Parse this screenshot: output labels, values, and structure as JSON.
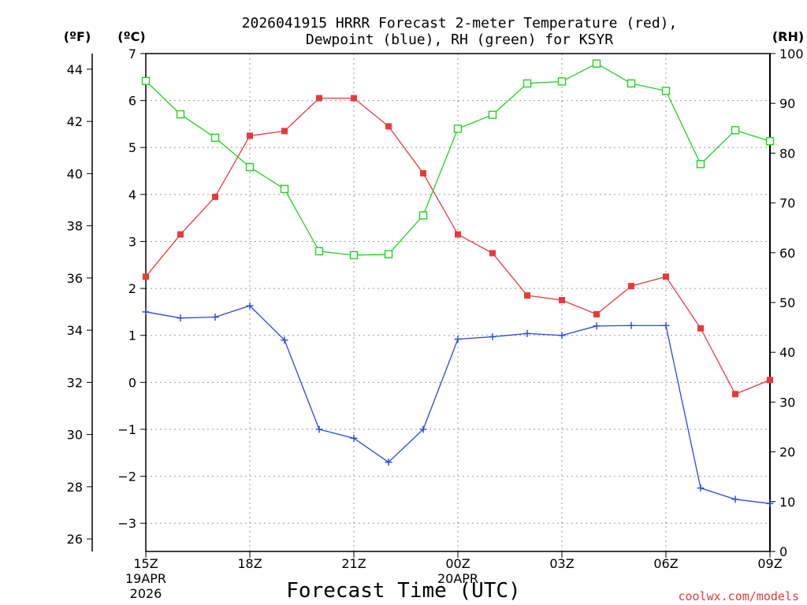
{
  "title_line1": "2026041915 HRRR Forecast 2-meter Temperature (red),",
  "title_line2": "Dewpoint (blue), RH (green) for KSYR",
  "credit": "coolwx.com/models",
  "chart_data": {
    "type": "line",
    "xlabel": "Forecast Time (UTC)",
    "x": [
      "15Z",
      "16Z",
      "17Z",
      "18Z",
      "19Z",
      "20Z",
      "21Z",
      "22Z",
      "23Z",
      "00Z",
      "01Z",
      "02Z",
      "03Z",
      "04Z",
      "05Z",
      "06Z",
      "07Z",
      "08Z",
      "09Z"
    ],
    "x_ticks": [
      {
        "index": 0,
        "label": "15Z",
        "sub": [
          "19APR",
          "2026"
        ]
      },
      {
        "index": 3,
        "label": "18Z",
        "sub": []
      },
      {
        "index": 6,
        "label": "21Z",
        "sub": []
      },
      {
        "index": 9,
        "label": "00Z",
        "sub": [
          "20APR"
        ]
      },
      {
        "index": 12,
        "label": "03Z",
        "sub": []
      },
      {
        "index": 15,
        "label": "06Z",
        "sub": []
      },
      {
        "index": 18,
        "label": "09Z",
        "sub": []
      }
    ],
    "axes": {
      "celsius": {
        "unit_label": "(ºC)",
        "range": [
          -3.6,
          7
        ],
        "ticks": [
          -3,
          -2,
          -1,
          0,
          1,
          2,
          3,
          4,
          5,
          6,
          7
        ]
      },
      "fahrenheit": {
        "unit_label": "(ºF)",
        "range": [
          25.52,
          44.6
        ],
        "ticks": [
          26,
          28,
          30,
          32,
          34,
          36,
          38,
          40,
          42,
          44
        ]
      },
      "rh": {
        "unit_label": "(RH)",
        "range": [
          0,
          100
        ],
        "ticks": [
          0,
          10,
          20,
          30,
          40,
          50,
          60,
          70,
          80,
          90,
          100
        ]
      }
    },
    "grid": true,
    "series": [
      {
        "name": "Temperature",
        "color": "#e8393b",
        "marker": "filled-square",
        "axis": "celsius",
        "values": [
          2.25,
          3.15,
          3.95,
          5.25,
          5.35,
          6.05,
          6.05,
          5.45,
          4.45,
          3.15,
          2.75,
          1.85,
          1.75,
          1.45,
          2.05,
          2.25,
          1.15,
          -0.25,
          0.05
        ]
      },
      {
        "name": "Dewpoint",
        "color": "#2448e0",
        "marker": "plus",
        "axis": "celsius",
        "values": [
          1.5,
          1.37,
          1.39,
          1.63,
          0.9,
          -1.0,
          -1.19,
          -1.7,
          -1.0,
          0.92,
          0.97,
          1.04,
          1.0,
          1.2,
          1.21,
          1.21,
          -2.25,
          -2.49,
          -2.58
        ]
      },
      {
        "name": "RH",
        "color": "#1fd31f",
        "marker": "open-square",
        "axis": "rh",
        "values": [
          94.5,
          87.8,
          83.1,
          77.2,
          72.8,
          60.3,
          59.5,
          59.7,
          67.5,
          84.9,
          87.7,
          94.0,
          94.4,
          98.0,
          94.0,
          92.5,
          77.8,
          84.6,
          82.4
        ]
      }
    ]
  }
}
